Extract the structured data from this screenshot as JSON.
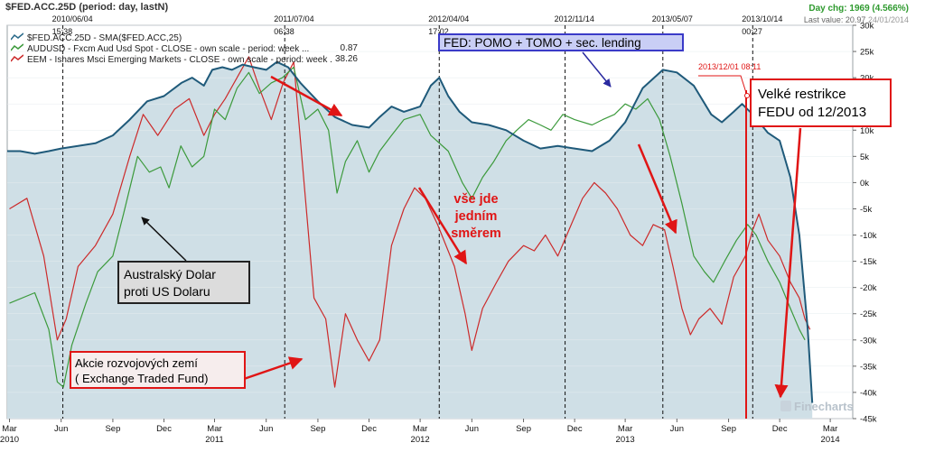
{
  "header": {
    "symbol": "$FED.ACC.25D",
    "period": "(period: day, lastN)",
    "day_change": "Day chg: 1969 (4.566%)",
    "last_value_label": "Last value: 20.97",
    "last_value_date": "24/01/2014"
  },
  "legend": [
    {
      "text": "$FED.ACC.25D - SMA($FED.ACC,25)",
      "value": "",
      "color": "#2a6a8a"
    },
    {
      "text": "AUDUSD - Fxcm Aud Usd Spot - CLOSE - own scale - period: week ...",
      "value": "0.87",
      "color": "#3c9a3c"
    },
    {
      "text": "EEM - Ishares Msci Emerging Markets - CLOSE - own scale - period: week ...",
      "value": "38.26",
      "color": "#cc2a2a"
    }
  ],
  "annotations": {
    "fed_box": "FED: POMO + TOMO + sec. lending",
    "restrictions_line1": "Velké restrikce",
    "restrictions_line2": "FEDU od 12/2013",
    "restrictions_date": "2013/12/01 08:11",
    "aud_line1": "Australský Dolar",
    "aud_line2": "proti US Dolaru",
    "em_line1": "Akcie rozvojových zemí",
    "em_line2": "( Exchange Traded Fund)",
    "same_dir_line1": "vše jde",
    "same_dir_line2": "jedním",
    "same_dir_line3": "směrem",
    "watermark": "Finecharts"
  },
  "chart_data": {
    "type": "line",
    "x_ticks": [
      "Mar",
      "Jun",
      "Sep",
      "Dec",
      "Mar",
      "Jun",
      "Sep",
      "Dec",
      "Mar",
      "Jun",
      "Sep",
      "Dec",
      "Mar",
      "Jun",
      "Sep",
      "Dec",
      "Mar"
    ],
    "x_tick_dates": [
      "2010-03-01",
      "2010-06-01",
      "2010-09-01",
      "2010-12-01",
      "2011-03-01",
      "2011-06-01",
      "2011-09-01",
      "2011-12-01",
      "2012-03-01",
      "2012-06-01",
      "2012-09-01",
      "2012-12-01",
      "2013-03-01",
      "2013-06-01",
      "2013-09-01",
      "2013-12-01",
      "2014-03-01"
    ],
    "x_year_labels": [
      {
        "label": "2010",
        "date": "2010-03-01"
      },
      {
        "label": "2011",
        "date": "2011-03-01"
      },
      {
        "label": "2012",
        "date": "2012-03-01"
      },
      {
        "label": "2013",
        "date": "2013-03-01"
      },
      {
        "label": "2014",
        "date": "2014-03-01"
      }
    ],
    "x_range": [
      "2010-02-25",
      "2014-04-10"
    ],
    "y_ticks": [
      "30k",
      "25k",
      "20k",
      "15k",
      "10k",
      "5k",
      "0k",
      "-5k",
      "-10k",
      "-15k",
      "-20k",
      "-25k",
      "-30k",
      "-35k",
      "-40k",
      "-45k"
    ],
    "ylim": [
      -45000,
      30000
    ],
    "markers": [
      {
        "label": "2010/06/04",
        "label2": "15:38",
        "date": "2010-06-04"
      },
      {
        "label": "2011/07/04",
        "label2": "06:38",
        "date": "2011-07-04"
      },
      {
        "label": "2012/04/04",
        "label2": "17:02",
        "date": "2012-04-04"
      },
      {
        "label": "2012/11/14",
        "label2": "",
        "date": "2012-11-14"
      },
      {
        "label": "2013/05/07",
        "label2": "",
        "date": "2013-05-07"
      },
      {
        "label": "2013/10/14",
        "label2": "00:27",
        "date": "2013-10-14"
      }
    ],
    "restriction_date": "2013-12-01",
    "series": [
      {
        "name": "$FED.ACC.25D - SMA($FED.ACC,25)",
        "color": "#1f5a7a",
        "fill": "#cfdfe6",
        "points": [
          [
            "2010-02-25",
            6000
          ],
          [
            "2010-03-20",
            6000
          ],
          [
            "2010-04-15",
            5500
          ],
          [
            "2010-05-10",
            6000
          ],
          [
            "2010-06-01",
            6500
          ],
          [
            "2010-07-01",
            7000
          ],
          [
            "2010-08-01",
            7500
          ],
          [
            "2010-09-01",
            9000
          ],
          [
            "2010-10-01",
            12000
          ],
          [
            "2010-11-01",
            15500
          ],
          [
            "2010-12-01",
            16500
          ],
          [
            "2011-01-01",
            19000
          ],
          [
            "2011-01-20",
            20000
          ],
          [
            "2011-02-10",
            18500
          ],
          [
            "2011-02-25",
            21500
          ],
          [
            "2011-03-15",
            22000
          ],
          [
            "2011-04-01",
            21500
          ],
          [
            "2011-04-20",
            22500
          ],
          [
            "2011-05-10",
            22000
          ],
          [
            "2011-06-01",
            21500
          ],
          [
            "2011-06-20",
            23000
          ],
          [
            "2011-07-10",
            22000
          ],
          [
            "2011-08-01",
            19000
          ],
          [
            "2011-09-01",
            15500
          ],
          [
            "2011-10-01",
            12500
          ],
          [
            "2011-11-01",
            11000
          ],
          [
            "2011-12-01",
            10500
          ],
          [
            "2011-12-20",
            12500
          ],
          [
            "2012-01-10",
            14500
          ],
          [
            "2012-02-01",
            13500
          ],
          [
            "2012-03-01",
            14500
          ],
          [
            "2012-03-20",
            18500
          ],
          [
            "2012-04-04",
            20000
          ],
          [
            "2012-04-20",
            16500
          ],
          [
            "2012-05-10",
            13500
          ],
          [
            "2012-06-01",
            11500
          ],
          [
            "2012-07-01",
            11000
          ],
          [
            "2012-08-01",
            10000
          ],
          [
            "2012-09-01",
            8000
          ],
          [
            "2012-10-01",
            6500
          ],
          [
            "2012-11-01",
            7000
          ],
          [
            "2012-12-01",
            6500
          ],
          [
            "2013-01-01",
            6000
          ],
          [
            "2013-02-01",
            8000
          ],
          [
            "2013-03-01",
            11500
          ],
          [
            "2013-04-01",
            18000
          ],
          [
            "2013-05-07",
            21500
          ],
          [
            "2013-06-01",
            21000
          ],
          [
            "2013-07-01",
            18500
          ],
          [
            "2013-08-01",
            13000
          ],
          [
            "2013-08-20",
            11500
          ],
          [
            "2013-09-10",
            13500
          ],
          [
            "2013-09-25",
            15000
          ],
          [
            "2013-10-14",
            13000
          ],
          [
            "2013-11-10",
            9500
          ],
          [
            "2013-12-01",
            8000
          ],
          [
            "2013-12-20",
            1000
          ],
          [
            "2014-01-05",
            -10000
          ],
          [
            "2014-01-20",
            -28000
          ],
          [
            "2014-01-28",
            -42000
          ]
        ]
      },
      {
        "name": "AUDUSD - Fxcm Aud Usd Spot - CLOSE",
        "color": "#3c9a3c",
        "points": [
          [
            "2010-03-01",
            -23000
          ],
          [
            "2010-04-15",
            -21000
          ],
          [
            "2010-05-10",
            -28000
          ],
          [
            "2010-05-25",
            -38000
          ],
          [
            "2010-06-05",
            -39000
          ],
          [
            "2010-06-20",
            -31000
          ],
          [
            "2010-07-15",
            -23000
          ],
          [
            "2010-08-05",
            -17000
          ],
          [
            "2010-09-01",
            -14000
          ],
          [
            "2010-09-20",
            -6000
          ],
          [
            "2010-10-15",
            5000
          ],
          [
            "2010-11-05",
            2000
          ],
          [
            "2010-11-25",
            3000
          ],
          [
            "2010-12-10",
            -1000
          ],
          [
            "2010-12-31",
            7000
          ],
          [
            "2011-01-20",
            3000
          ],
          [
            "2011-02-10",
            5000
          ],
          [
            "2011-03-01",
            14000
          ],
          [
            "2011-03-20",
            12000
          ],
          [
            "2011-04-10",
            18000
          ],
          [
            "2011-05-01",
            21000
          ],
          [
            "2011-05-20",
            17000
          ],
          [
            "2011-06-10",
            19000
          ],
          [
            "2011-06-30",
            20000
          ],
          [
            "2011-07-20",
            22000
          ],
          [
            "2011-08-10",
            12000
          ],
          [
            "2011-09-01",
            14000
          ],
          [
            "2011-09-20",
            10000
          ],
          [
            "2011-10-05",
            -2000
          ],
          [
            "2011-10-20",
            4000
          ],
          [
            "2011-11-10",
            8000
          ],
          [
            "2011-12-01",
            2000
          ],
          [
            "2011-12-20",
            6000
          ],
          [
            "2012-01-10",
            9000
          ],
          [
            "2012-02-01",
            12000
          ],
          [
            "2012-03-01",
            13000
          ],
          [
            "2012-03-20",
            9000
          ],
          [
            "2012-04-20",
            6000
          ],
          [
            "2012-05-15",
            0
          ],
          [
            "2012-06-01",
            -3000
          ],
          [
            "2012-06-20",
            1000
          ],
          [
            "2012-07-10",
            4000
          ],
          [
            "2012-08-01",
            8000
          ],
          [
            "2012-08-20",
            10000
          ],
          [
            "2012-09-10",
            12000
          ],
          [
            "2012-10-01",
            11000
          ],
          [
            "2012-10-20",
            10000
          ],
          [
            "2012-11-10",
            13000
          ],
          [
            "2012-12-01",
            12000
          ],
          [
            "2013-01-01",
            11000
          ],
          [
            "2013-01-20",
            12000
          ],
          [
            "2013-02-10",
            13000
          ],
          [
            "2013-03-01",
            15000
          ],
          [
            "2013-03-20",
            14000
          ],
          [
            "2013-04-10",
            16000
          ],
          [
            "2013-05-01",
            12000
          ],
          [
            "2013-05-20",
            5000
          ],
          [
            "2013-06-10",
            -4000
          ],
          [
            "2013-07-01",
            -14000
          ],
          [
            "2013-07-20",
            -17000
          ],
          [
            "2013-08-05",
            -19000
          ],
          [
            "2013-08-25",
            -15000
          ],
          [
            "2013-09-15",
            -11000
          ],
          [
            "2013-10-05",
            -8000
          ],
          [
            "2013-10-20",
            -10000
          ],
          [
            "2013-11-10",
            -15000
          ],
          [
            "2013-12-01",
            -19000
          ],
          [
            "2013-12-20",
            -24000
          ],
          [
            "2014-01-05",
            -28000
          ],
          [
            "2014-01-15",
            -30000
          ]
        ]
      },
      {
        "name": "EEM - Ishares Msci Emerging Markets - CLOSE",
        "color": "#cc2a2a",
        "points": [
          [
            "2010-03-01",
            -5000
          ],
          [
            "2010-04-01",
            -3000
          ],
          [
            "2010-05-01",
            -14000
          ],
          [
            "2010-05-25",
            -30000
          ],
          [
            "2010-06-10",
            -26000
          ],
          [
            "2010-07-01",
            -16000
          ],
          [
            "2010-08-01",
            -12000
          ],
          [
            "2010-09-01",
            -6000
          ],
          [
            "2010-10-01",
            5000
          ],
          [
            "2010-10-25",
            13000
          ],
          [
            "2010-11-20",
            9000
          ],
          [
            "2010-12-20",
            14000
          ],
          [
            "2011-01-15",
            16000
          ],
          [
            "2011-02-10",
            9000
          ],
          [
            "2011-03-01",
            13000
          ],
          [
            "2011-03-20",
            16000
          ],
          [
            "2011-04-10",
            20000
          ],
          [
            "2011-05-01",
            24000
          ],
          [
            "2011-05-20",
            18000
          ],
          [
            "2011-06-10",
            12000
          ],
          [
            "2011-07-01",
            19000
          ],
          [
            "2011-07-20",
            23000
          ],
          [
            "2011-08-05",
            3000
          ],
          [
            "2011-08-25",
            -22000
          ],
          [
            "2011-09-15",
            -26000
          ],
          [
            "2011-10-01",
            -39000
          ],
          [
            "2011-10-20",
            -25000
          ],
          [
            "2011-11-10",
            -30000
          ],
          [
            "2011-12-01",
            -34000
          ],
          [
            "2011-12-20",
            -30000
          ],
          [
            "2012-01-10",
            -12000
          ],
          [
            "2012-02-01",
            -5000
          ],
          [
            "2012-02-20",
            -1000
          ],
          [
            "2012-03-10",
            -3000
          ],
          [
            "2012-04-01",
            -8000
          ],
          [
            "2012-05-01",
            -16000
          ],
          [
            "2012-05-20",
            -25000
          ],
          [
            "2012-06-01",
            -32000
          ],
          [
            "2012-06-20",
            -24000
          ],
          [
            "2012-07-15",
            -19000
          ],
          [
            "2012-08-05",
            -15000
          ],
          [
            "2012-09-01",
            -12000
          ],
          [
            "2012-09-20",
            -13000
          ],
          [
            "2012-10-10",
            -10000
          ],
          [
            "2012-11-01",
            -14000
          ],
          [
            "2012-11-25",
            -8000
          ],
          [
            "2012-12-15",
            -3000
          ],
          [
            "2013-01-05",
            0
          ],
          [
            "2013-01-25",
            -2000
          ],
          [
            "2013-02-15",
            -5000
          ],
          [
            "2013-03-10",
            -10000
          ],
          [
            "2013-04-01",
            -12000
          ],
          [
            "2013-04-20",
            -8000
          ],
          [
            "2013-05-10",
            -9000
          ],
          [
            "2013-05-25",
            -16000
          ],
          [
            "2013-06-10",
            -24000
          ],
          [
            "2013-06-25",
            -29000
          ],
          [
            "2013-07-10",
            -26000
          ],
          [
            "2013-07-30",
            -24000
          ],
          [
            "2013-08-20",
            -27000
          ],
          [
            "2013-09-10",
            -18000
          ],
          [
            "2013-10-01",
            -14000
          ],
          [
            "2013-10-14",
            -9000
          ],
          [
            "2013-10-25",
            -6000
          ],
          [
            "2013-11-10",
            -11000
          ],
          [
            "2013-12-01",
            -14000
          ],
          [
            "2013-12-20",
            -19000
          ],
          [
            "2014-01-05",
            -22000
          ],
          [
            "2014-01-15",
            -26000
          ],
          [
            "2014-01-24",
            -28000
          ]
        ]
      }
    ]
  }
}
